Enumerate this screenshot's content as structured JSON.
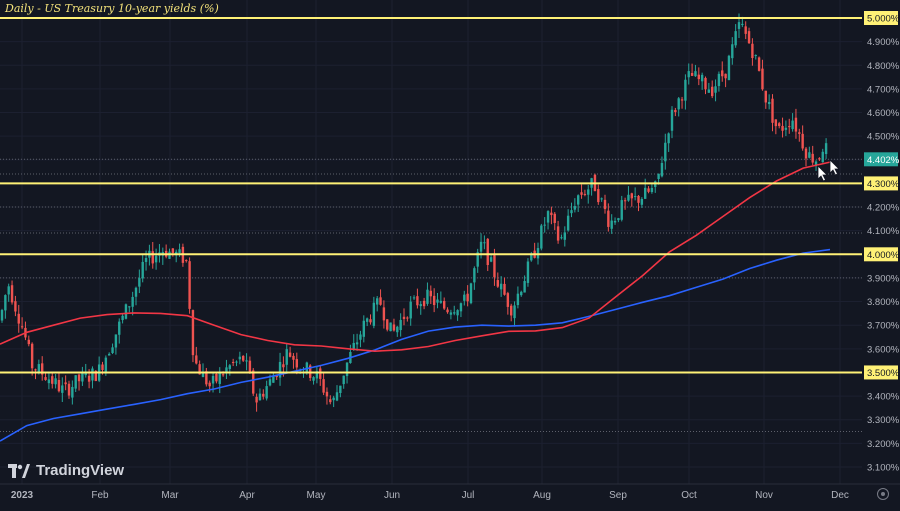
{
  "chart_data": {
    "type": "candlestick",
    "title": "Daily - US Treasury 10-year yields (%)",
    "y_ticks": [
      "5.000%",
      "4.900%",
      "4.800%",
      "4.700%",
      "4.600%",
      "4.500%",
      "4.400%",
      "4.300%",
      "4.200%",
      "4.100%",
      "4.000%",
      "3.900%",
      "3.800%",
      "3.700%",
      "3.600%",
      "3.500%",
      "3.400%",
      "3.300%",
      "3.200%",
      "3.100%"
    ],
    "x_ticks": [
      "2023",
      "Feb",
      "Mar",
      "Apr",
      "May",
      "Jun",
      "Jul",
      "Aug",
      "Sep",
      "Oct",
      "Nov",
      "Dec"
    ],
    "ylim": [
      3.05,
      5.04
    ],
    "horizontal_levels": [
      5.0,
      4.3,
      4.0,
      3.5
    ],
    "dotted_levels": [
      4.34,
      4.2,
      4.09,
      3.9,
      3.25
    ],
    "current_price": "4.402%",
    "current_price_value": 4.402,
    "highlighted_prices": [
      "5.000%",
      "4.300%",
      "4.000%",
      "3.500%"
    ],
    "colors": {
      "up": "#26a69a",
      "down": "#ef5350",
      "level": "#fff176",
      "ma_fast": "#f23645",
      "ma_slow": "#2962ff",
      "price_tag": "#26a69a"
    },
    "ma_fast": [
      3.62,
      3.67,
      3.7,
      3.73,
      3.745,
      3.752,
      3.75,
      3.74,
      3.7,
      3.66,
      3.635,
      3.617,
      3.612,
      3.6,
      3.59,
      3.596,
      3.61,
      3.635,
      3.655,
      3.674,
      3.676,
      3.69,
      3.73,
      3.82,
      3.91,
      4.01,
      4.08,
      4.16,
      4.24,
      4.31,
      4.365,
      4.39
    ],
    "ma_slow": [
      3.21,
      3.275,
      3.305,
      3.325,
      3.345,
      3.365,
      3.385,
      3.41,
      3.43,
      3.458,
      3.48,
      3.505,
      3.53,
      3.56,
      3.595,
      3.64,
      3.675,
      3.692,
      3.7,
      3.696,
      3.7,
      3.71,
      3.737,
      3.767,
      3.797,
      3.825,
      3.86,
      3.895,
      3.94,
      3.975,
      4.005,
      4.02
    ]
  },
  "brand": "TradingView",
  "icons": {
    "logo": "tradingview-logo-icon",
    "settings": "settings-icon",
    "cursor": "arrow-cursor-icon"
  }
}
